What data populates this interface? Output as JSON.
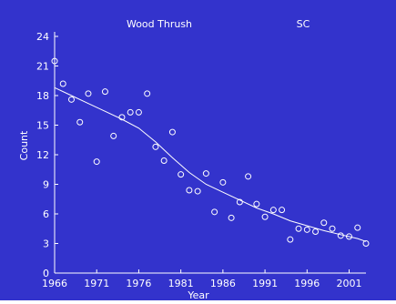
{
  "chart_data": {
    "type": "scatter",
    "title": "Wood Thrush",
    "region": "SC",
    "xlabel": "Year",
    "ylabel": "Count",
    "xlim": [
      1966,
      2003
    ],
    "ylim": [
      0,
      24
    ],
    "x_ticks": [
      1966,
      1971,
      1976,
      1981,
      1986,
      1991,
      1996,
      2001
    ],
    "y_ticks": [
      0,
      3,
      6,
      9,
      12,
      15,
      18,
      21,
      24
    ],
    "grid": false,
    "background_color": "#3333cc",
    "foreground_color": "#ffffff",
    "points": [
      [
        1966,
        21.5
      ],
      [
        1967,
        19.2
      ],
      [
        1968,
        17.6
      ],
      [
        1969,
        15.3
      ],
      [
        1970,
        18.2
      ],
      [
        1971,
        11.3
      ],
      [
        1972,
        18.4
      ],
      [
        1973,
        13.9
      ],
      [
        1974,
        15.8
      ],
      [
        1975,
        16.3
      ],
      [
        1976,
        16.3
      ],
      [
        1977,
        18.2
      ],
      [
        1978,
        12.8
      ],
      [
        1979,
        11.4
      ],
      [
        1980,
        14.3
      ],
      [
        1981,
        10.0
      ],
      [
        1982,
        8.4
      ],
      [
        1983,
        8.3
      ],
      [
        1984,
        10.1
      ],
      [
        1985,
        6.2
      ],
      [
        1986,
        9.2
      ],
      [
        1987,
        5.6
      ],
      [
        1988,
        7.2
      ],
      [
        1989,
        9.8
      ],
      [
        1990,
        7.0
      ],
      [
        1991,
        5.7
      ],
      [
        1992,
        6.4
      ],
      [
        1993,
        6.4
      ],
      [
        1994,
        3.4
      ],
      [
        1995,
        4.5
      ],
      [
        1996,
        4.4
      ],
      [
        1997,
        4.2
      ],
      [
        1998,
        5.1
      ],
      [
        1999,
        4.5
      ],
      [
        2000,
        3.8
      ],
      [
        2001,
        3.7
      ],
      [
        2002,
        4.6
      ],
      [
        2003,
        3.0
      ]
    ],
    "trend_line": [
      [
        1966,
        18.8
      ],
      [
        1968,
        18.0
      ],
      [
        1970,
        17.2
      ],
      [
        1972,
        16.4
      ],
      [
        1974,
        15.6
      ],
      [
        1976,
        14.7
      ],
      [
        1978,
        13.3
      ],
      [
        1980,
        11.7
      ],
      [
        1982,
        10.2
      ],
      [
        1984,
        9.0
      ],
      [
        1986,
        8.2
      ],
      [
        1988,
        7.4
      ],
      [
        1990,
        6.6
      ],
      [
        1992,
        6.0
      ],
      [
        1994,
        5.3
      ],
      [
        1996,
        4.8
      ],
      [
        1998,
        4.3
      ],
      [
        2000,
        3.9
      ],
      [
        2002,
        3.5
      ],
      [
        2003,
        3.2
      ]
    ]
  }
}
